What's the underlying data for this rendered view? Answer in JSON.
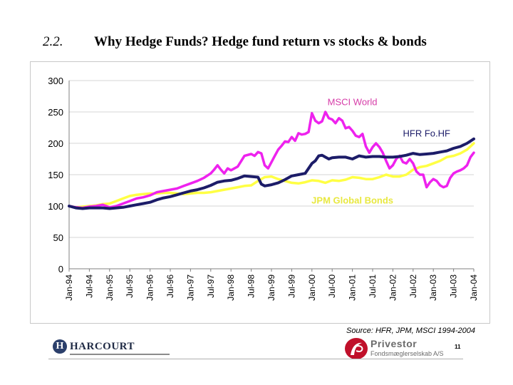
{
  "slide": {
    "number": "2.2.",
    "title": "Why Hedge Funds? Hedge fund return vs stocks & bonds",
    "source": "Source: HFR, JPM, MSCI 1994-2004",
    "page_number": "11"
  },
  "logos": {
    "harcourt": {
      "mark": "H",
      "name": "HARCOURT"
    },
    "privestor": {
      "name": "Privestor",
      "subtitle": "Fondsmæglerselskab A/S"
    }
  },
  "chart_data": {
    "type": "line",
    "title": "",
    "xlabel": "",
    "ylabel": "",
    "ylim": [
      0,
      300
    ],
    "y_ticks": [
      0,
      50,
      100,
      150,
      200,
      250,
      300
    ],
    "x_range": [
      0,
      120
    ],
    "x_tick_positions": [
      0,
      6,
      12,
      18,
      24,
      30,
      36,
      42,
      48,
      54,
      60,
      66,
      72,
      78,
      84,
      90,
      96,
      102,
      108,
      114,
      120
    ],
    "x_tick_labels": [
      "Jan-94",
      "Jul-94",
      "Jan-95",
      "Jul-95",
      "Jan-96",
      "Jul-96",
      "Jan-97",
      "Jul-97",
      "Jan-98",
      "Jul-98",
      "Jan-99",
      "Jul-99",
      "Jan-00",
      "Jul-00",
      "Jan-01",
      "Jul-01",
      "Jan-02",
      "Jul-02",
      "Jan-03",
      "Jul-03",
      "Jan-04"
    ],
    "grid": "horizontal",
    "legend": "inline labels",
    "series": [
      {
        "name": "MSCI World",
        "color": "#ee22ee",
        "label_color": "#d63ca8",
        "label_at": [
          84,
          261
        ],
        "points": [
          [
            0,
            100
          ],
          [
            2,
            98
          ],
          [
            4,
            97
          ],
          [
            6,
            99
          ],
          [
            8,
            100
          ],
          [
            10,
            102
          ],
          [
            12,
            98
          ],
          [
            14,
            100
          ],
          [
            16,
            104
          ],
          [
            18,
            108
          ],
          [
            20,
            112
          ],
          [
            22,
            114
          ],
          [
            24,
            117
          ],
          [
            26,
            122
          ],
          [
            28,
            124
          ],
          [
            30,
            126
          ],
          [
            32,
            128
          ],
          [
            34,
            132
          ],
          [
            36,
            136
          ],
          [
            38,
            140
          ],
          [
            40,
            145
          ],
          [
            42,
            152
          ],
          [
            43,
            158
          ],
          [
            44,
            165
          ],
          [
            45,
            158
          ],
          [
            46,
            152
          ],
          [
            47,
            160
          ],
          [
            48,
            157
          ],
          [
            50,
            163
          ],
          [
            52,
            180
          ],
          [
            54,
            183
          ],
          [
            55,
            180
          ],
          [
            56,
            186
          ],
          [
            57,
            184
          ],
          [
            58,
            165
          ],
          [
            59,
            160
          ],
          [
            60,
            170
          ],
          [
            61,
            180
          ],
          [
            62,
            190
          ],
          [
            63,
            196
          ],
          [
            64,
            203
          ],
          [
            65,
            202
          ],
          [
            66,
            210
          ],
          [
            67,
            204
          ],
          [
            68,
            216
          ],
          [
            69,
            214
          ],
          [
            70,
            215
          ],
          [
            71,
            218
          ],
          [
            72,
            248
          ],
          [
            73,
            236
          ],
          [
            74,
            232
          ],
          [
            75,
            235
          ],
          [
            76,
            250
          ],
          [
            77,
            240
          ],
          [
            78,
            238
          ],
          [
            79,
            232
          ],
          [
            80,
            240
          ],
          [
            81,
            236
          ],
          [
            82,
            224
          ],
          [
            83,
            226
          ],
          [
            84,
            220
          ],
          [
            85,
            212
          ],
          [
            86,
            210
          ],
          [
            87,
            215
          ],
          [
            88,
            195
          ],
          [
            89,
            185
          ],
          [
            90,
            194
          ],
          [
            91,
            200
          ],
          [
            92,
            194
          ],
          [
            93,
            185
          ],
          [
            94,
            172
          ],
          [
            95,
            160
          ],
          [
            96,
            165
          ],
          [
            97,
            175
          ],
          [
            98,
            180
          ],
          [
            99,
            170
          ],
          [
            100,
            168
          ],
          [
            101,
            175
          ],
          [
            102,
            168
          ],
          [
            103,
            155
          ],
          [
            104,
            150
          ],
          [
            105,
            150
          ],
          [
            106,
            130
          ],
          [
            107,
            138
          ],
          [
            108,
            143
          ],
          [
            109,
            140
          ],
          [
            110,
            133
          ],
          [
            111,
            130
          ],
          [
            112,
            132
          ],
          [
            113,
            145
          ],
          [
            114,
            152
          ],
          [
            115,
            155
          ],
          [
            116,
            157
          ],
          [
            117,
            160
          ],
          [
            118,
            165
          ],
          [
            119,
            178
          ],
          [
            120,
            185
          ]
        ]
      },
      {
        "name": "HFR Fo.HF",
        "color": "#1c1c68",
        "label_color": "#1c1c68",
        "label_at": [
          106,
          211
        ],
        "points": [
          [
            0,
            100
          ],
          [
            2,
            97
          ],
          [
            4,
            96
          ],
          [
            6,
            97
          ],
          [
            8,
            97
          ],
          [
            10,
            97
          ],
          [
            12,
            96
          ],
          [
            14,
            97
          ],
          [
            16,
            98
          ],
          [
            18,
            100
          ],
          [
            20,
            102
          ],
          [
            22,
            104
          ],
          [
            24,
            106
          ],
          [
            26,
            110
          ],
          [
            28,
            113
          ],
          [
            30,
            115
          ],
          [
            32,
            118
          ],
          [
            34,
            121
          ],
          [
            36,
            124
          ],
          [
            38,
            126
          ],
          [
            40,
            129
          ],
          [
            42,
            133
          ],
          [
            44,
            138
          ],
          [
            46,
            140
          ],
          [
            48,
            141
          ],
          [
            50,
            144
          ],
          [
            52,
            148
          ],
          [
            54,
            147
          ],
          [
            56,
            146
          ],
          [
            57,
            135
          ],
          [
            58,
            132
          ],
          [
            60,
            134
          ],
          [
            62,
            137
          ],
          [
            64,
            142
          ],
          [
            66,
            148
          ],
          [
            68,
            150
          ],
          [
            70,
            152
          ],
          [
            72,
            168
          ],
          [
            73,
            172
          ],
          [
            74,
            180
          ],
          [
            75,
            181
          ],
          [
            76,
            178
          ],
          [
            77,
            175
          ],
          [
            78,
            177
          ],
          [
            80,
            178
          ],
          [
            82,
            178
          ],
          [
            84,
            175
          ],
          [
            86,
            180
          ],
          [
            88,
            178
          ],
          [
            90,
            179
          ],
          [
            92,
            179
          ],
          [
            94,
            178
          ],
          [
            96,
            178
          ],
          [
            98,
            179
          ],
          [
            100,
            181
          ],
          [
            102,
            184
          ],
          [
            104,
            182
          ],
          [
            106,
            183
          ],
          [
            108,
            184
          ],
          [
            110,
            186
          ],
          [
            112,
            188
          ],
          [
            114,
            192
          ],
          [
            116,
            195
          ],
          [
            118,
            200
          ],
          [
            120,
            207
          ]
        ]
      },
      {
        "name": "JPM Global Bonds",
        "color": "#ffff44",
        "label_color": "#e8e840",
        "label_at": [
          84,
          104
        ],
        "points": [
          [
            0,
            100
          ],
          [
            2,
            98
          ],
          [
            4,
            99
          ],
          [
            6,
            100
          ],
          [
            8,
            101
          ],
          [
            10,
            103
          ],
          [
            12,
            104
          ],
          [
            14,
            108
          ],
          [
            16,
            112
          ],
          [
            18,
            116
          ],
          [
            20,
            118
          ],
          [
            22,
            119
          ],
          [
            24,
            120
          ],
          [
            26,
            120
          ],
          [
            28,
            121
          ],
          [
            30,
            121
          ],
          [
            32,
            120
          ],
          [
            34,
            119
          ],
          [
            36,
            120
          ],
          [
            38,
            121
          ],
          [
            40,
            121
          ],
          [
            42,
            122
          ],
          [
            44,
            124
          ],
          [
            46,
            126
          ],
          [
            48,
            128
          ],
          [
            50,
            130
          ],
          [
            52,
            132
          ],
          [
            54,
            133
          ],
          [
            56,
            140
          ],
          [
            58,
            146
          ],
          [
            60,
            147
          ],
          [
            62,
            143
          ],
          [
            64,
            140
          ],
          [
            66,
            137
          ],
          [
            68,
            136
          ],
          [
            70,
            138
          ],
          [
            72,
            141
          ],
          [
            74,
            140
          ],
          [
            76,
            137
          ],
          [
            78,
            141
          ],
          [
            80,
            140
          ],
          [
            82,
            142
          ],
          [
            84,
            146
          ],
          [
            86,
            145
          ],
          [
            88,
            143
          ],
          [
            90,
            143
          ],
          [
            92,
            146
          ],
          [
            94,
            150
          ],
          [
            96,
            147
          ],
          [
            98,
            147
          ],
          [
            100,
            150
          ],
          [
            102,
            158
          ],
          [
            104,
            162
          ],
          [
            106,
            164
          ],
          [
            108,
            168
          ],
          [
            110,
            172
          ],
          [
            112,
            178
          ],
          [
            114,
            180
          ],
          [
            116,
            184
          ],
          [
            118,
            190
          ],
          [
            120,
            200
          ]
        ]
      }
    ]
  }
}
